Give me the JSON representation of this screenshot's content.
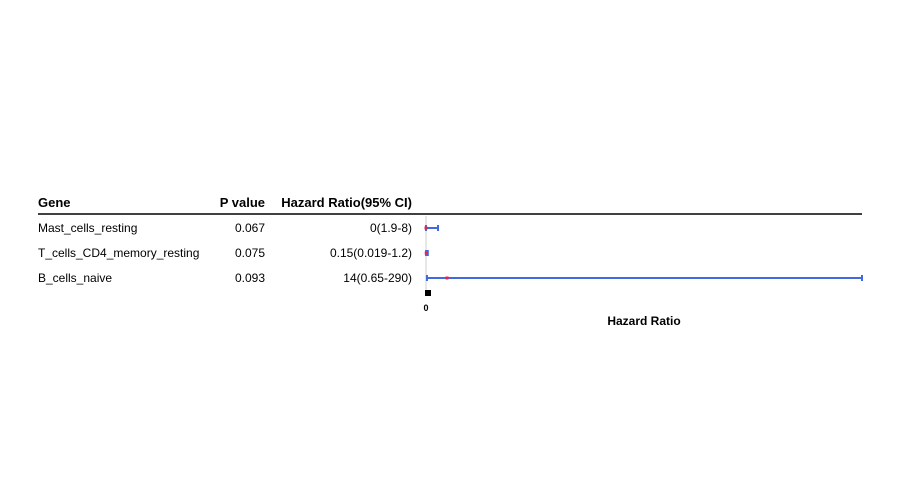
{
  "chart_data": {
    "type": "forest",
    "columns": {
      "gene": "Gene",
      "pvalue": "P value",
      "hr": "Hazard Ratio(95% CI)"
    },
    "rows": [
      {
        "gene": "Mast_cells_resting",
        "pvalue": "0.067",
        "hr_text": "0(1.9-8)",
        "hr": 0.0,
        "lower": 0.0,
        "upper": 8.0
      },
      {
        "gene": "T_cells_CD4_memory_resting",
        "pvalue": "0.075",
        "hr_text": "0.15(0.019-1.2)",
        "hr": 0.15,
        "lower": 0.019,
        "upper": 1.2
      },
      {
        "gene": "B_cells_naive",
        "pvalue": "0.093",
        "hr_text": "14(0.65-290)",
        "hr": 14,
        "lower": 0.65,
        "upper": 290
      }
    ],
    "xlabel": "Hazard Ratio",
    "xticks": [
      "0"
    ],
    "xlim": [
      0,
      290
    ],
    "colors": {
      "ci": "#4169e1",
      "point": "#e8264a",
      "reference": "#cccccc",
      "rule": "#000000"
    }
  }
}
